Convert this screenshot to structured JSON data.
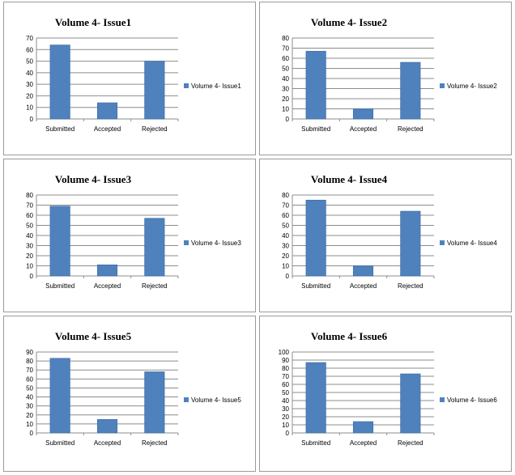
{
  "chart_data": [
    {
      "type": "bar",
      "title": "Volume 4- Issue1",
      "categories": [
        "Submitted",
        "Accepted",
        "Rejected"
      ],
      "series": [
        {
          "name": "Volume 4- Issue1",
          "values": [
            64,
            14,
            50
          ]
        }
      ],
      "ylim": [
        0,
        70
      ],
      "yticks": [
        0,
        10,
        20,
        30,
        40,
        50,
        60,
        70
      ],
      "grid": true,
      "legend": "right",
      "color": "#4f81bd"
    },
    {
      "type": "bar",
      "title": "Volume 4- Issue2",
      "categories": [
        "Submitted",
        "Accepted",
        "Rejected"
      ],
      "series": [
        {
          "name": "Volume 4- Issue2",
          "values": [
            67,
            10,
            56
          ]
        }
      ],
      "ylim": [
        0,
        80
      ],
      "yticks": [
        0,
        10,
        20,
        30,
        40,
        50,
        60,
        70,
        80
      ],
      "grid": true,
      "legend": "right",
      "color": "#4f81bd"
    },
    {
      "type": "bar",
      "title": "Volume 4- Issue3",
      "categories": [
        "Submitted",
        "Accepted",
        "Rejected"
      ],
      "series": [
        {
          "name": "Volume 4- Issue3",
          "values": [
            69,
            11,
            57
          ]
        }
      ],
      "ylim": [
        0,
        80
      ],
      "yticks": [
        0,
        10,
        20,
        30,
        40,
        50,
        60,
        70,
        80
      ],
      "grid": true,
      "legend": "right",
      "color": "#4f81bd"
    },
    {
      "type": "bar",
      "title": "Volume 4- Issue4",
      "categories": [
        "Submitted",
        "Accepted",
        "Rejected"
      ],
      "series": [
        {
          "name": "Volume 4- Issue4",
          "values": [
            75,
            10,
            64
          ]
        }
      ],
      "ylim": [
        0,
        80
      ],
      "yticks": [
        0,
        10,
        20,
        30,
        40,
        50,
        60,
        70,
        80
      ],
      "grid": true,
      "legend": "right",
      "color": "#4f81bd"
    },
    {
      "type": "bar",
      "title": "Volume 4- Issue5",
      "categories": [
        "Submitted",
        "Accepted",
        "Rejected"
      ],
      "series": [
        {
          "name": "Volume 4- Issue5",
          "values": [
            83,
            15,
            68
          ]
        }
      ],
      "ylim": [
        0,
        90
      ],
      "yticks": [
        0,
        10,
        20,
        30,
        40,
        50,
        60,
        70,
        80,
        90
      ],
      "grid": true,
      "legend": "right",
      "color": "#4f81bd"
    },
    {
      "type": "bar",
      "title": "Volume 4- Issue6",
      "categories": [
        "Submitted",
        "Accepted",
        "Rejected"
      ],
      "series": [
        {
          "name": "Volume 4- Issue6",
          "values": [
            87,
            14,
            73
          ]
        }
      ],
      "ylim": [
        0,
        100
      ],
      "yticks": [
        0,
        10,
        20,
        30,
        40,
        50,
        60,
        70,
        80,
        90,
        100
      ],
      "grid": true,
      "legend": "right",
      "color": "#4f81bd"
    }
  ]
}
